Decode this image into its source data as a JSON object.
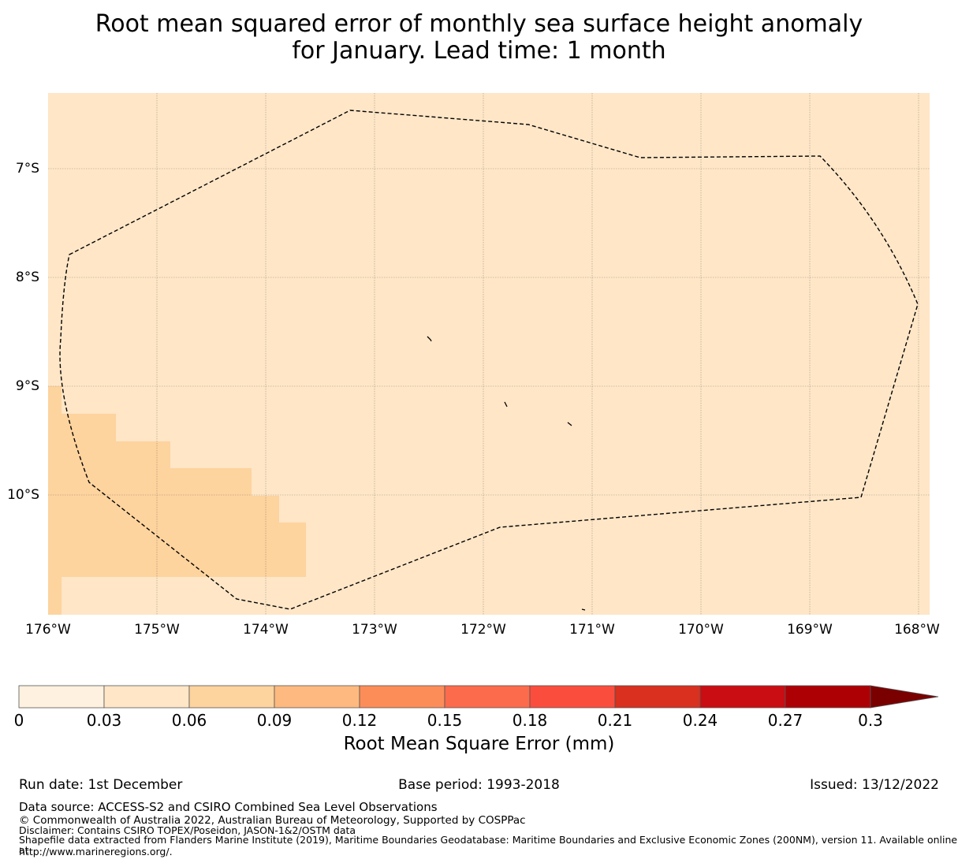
{
  "title": {
    "line1": "Root mean squared error of monthly sea surface height anomaly",
    "line2": "for January. Lead time: 1 month"
  },
  "map": {
    "background_color": "#fee6c7",
    "anomaly_color": "#fdd39e",
    "lat_labels": [
      "7°S",
      "8°S",
      "9°S",
      "10°S"
    ],
    "lon_labels": [
      "176°W",
      "175°W",
      "174°W",
      "173°W",
      "172°W",
      "171°W",
      "170°W",
      "169°W",
      "168°W"
    ],
    "boundary": "EEZ boundary (dashed)"
  },
  "colorbar": {
    "colors": [
      "#fff1df",
      "#fee6c7",
      "#fdd39e",
      "#fdb97f",
      "#fc8d59",
      "#fc6b4b",
      "#fb4d3d",
      "#d9301f",
      "#c90d13",
      "#ad0005",
      "#7a0000"
    ],
    "ticks": [
      "0",
      "0.03",
      "0.06",
      "0.09",
      "0.12",
      "0.15",
      "0.18",
      "0.21",
      "0.24",
      "0.27",
      "0.3"
    ],
    "label": "Root Mean Square Error (mm)"
  },
  "footer": {
    "run_date": "Run date: 1st December",
    "base_period": "Base period: 1993-2018",
    "issued": "Issued: 13/12/2022",
    "data_source": "Data source: ACCESS-S2 and CSIRO Combined Sea Level Observations",
    "copyright": "© Commonwealth of Australia 2022, Australian Bureau of Meteorology, Supported by COSPPac",
    "disclaimer": "Disclaimer: Contains CSIRO TOPEX/Poseidon, JASON-1&2/OSTM data",
    "shapefile_line1": "Shapefile data extracted from Flanders Marine Institute (2019), Maritime Boundaries Geodatabase: Maritime Boundaries and Exclusive Economic Zones (200NM), version 11. Available online at",
    "shapefile_line2": "http://www.marineregions.org/."
  }
}
